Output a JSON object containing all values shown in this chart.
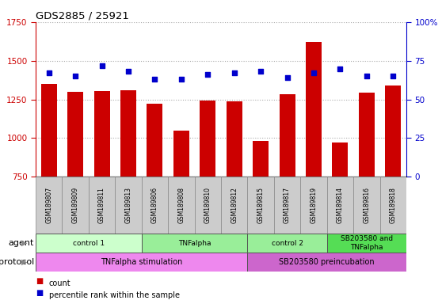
{
  "title": "GDS2885 / 25921",
  "samples": [
    "GSM189807",
    "GSM189809",
    "GSM189811",
    "GSM189813",
    "GSM189806",
    "GSM189808",
    "GSM189810",
    "GSM189812",
    "GSM189815",
    "GSM189817",
    "GSM189819",
    "GSM189814",
    "GSM189816",
    "GSM189818"
  ],
  "counts": [
    1350,
    1300,
    1305,
    1310,
    1220,
    1050,
    1240,
    1235,
    980,
    1285,
    1620,
    970,
    1295,
    1340
  ],
  "percentiles": [
    67,
    65,
    72,
    68,
    63,
    63,
    66,
    67,
    68,
    64,
    67,
    70,
    65,
    65
  ],
  "ylim_left": [
    750,
    1750
  ],
  "ylim_right": [
    0,
    100
  ],
  "yticks_left": [
    750,
    1000,
    1250,
    1500,
    1750
  ],
  "yticks_right": [
    0,
    25,
    50,
    75,
    100
  ],
  "ytick_labels_right": [
    "0",
    "25",
    "50",
    "75",
    "100%"
  ],
  "bar_color": "#cc0000",
  "dot_color": "#0000cc",
  "grid_color": "#aaaaaa",
  "agent_groups": [
    {
      "label": "control 1",
      "start": 0,
      "end": 4,
      "color": "#ccffcc"
    },
    {
      "label": "TNFalpha",
      "start": 4,
      "end": 8,
      "color": "#99ee99"
    },
    {
      "label": "control 2",
      "start": 8,
      "end": 11,
      "color": "#99ee99"
    },
    {
      "label": "SB203580 and\nTNFalpha",
      "start": 11,
      "end": 14,
      "color": "#55dd55"
    }
  ],
  "protocol_groups": [
    {
      "label": "TNFalpha stimulation",
      "start": 0,
      "end": 8,
      "color": "#ee88ee"
    },
    {
      "label": "SB203580 preincubation",
      "start": 8,
      "end": 14,
      "color": "#cc66cc"
    }
  ],
  "left_axis_color": "#cc0000",
  "right_axis_color": "#0000cc",
  "label_box_color": "#cccccc",
  "label_box_edge": "#888888"
}
